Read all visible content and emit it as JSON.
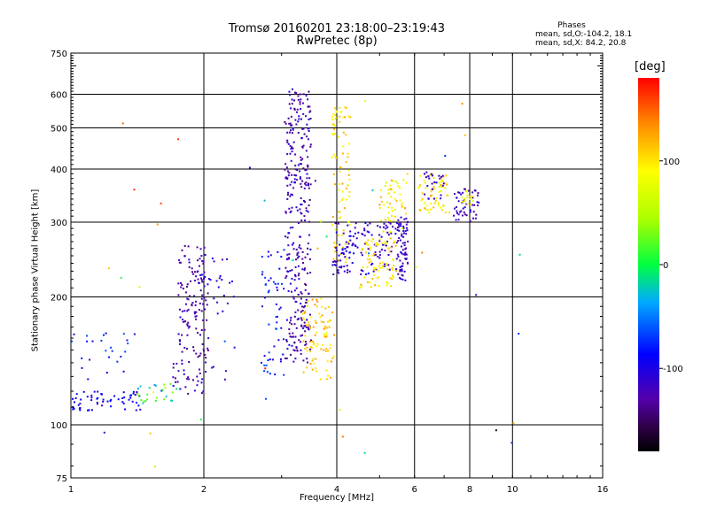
{
  "chart_data": {
    "type": "scatter",
    "title": "Tromsø 20160201 23:18:00–23:19:43",
    "subtitle": "RwPretec (8p)",
    "xlabel": "Frequency [MHz]",
    "ylabel": "Stationary phase Virtual Height [km]",
    "x_scale": "log",
    "y_scale": "log",
    "xlim": [
      1,
      16
    ],
    "ylim": [
      75,
      750
    ],
    "x_ticks": [
      1,
      2,
      4,
      6,
      8,
      10,
      16
    ],
    "x_tick_labels": [
      "1",
      "2",
      "4",
      "6",
      "8",
      "10",
      "16"
    ],
    "x_grid": [
      2,
      4,
      6,
      8,
      10
    ],
    "y_ticks": [
      75,
      100,
      200,
      300,
      400,
      500,
      600,
      750
    ],
    "y_tick_labels": [
      "75",
      "100",
      "200",
      "300",
      "400",
      "500",
      "600",
      "750"
    ],
    "y_grid": [
      100,
      200,
      300,
      400,
      500,
      600
    ],
    "grid": true,
    "colorbar": {
      "label": "[deg]",
      "range": [
        -180,
        180
      ],
      "ticks": [
        -100,
        0,
        100
      ],
      "tick_labels": [
        "-100",
        "0",
        "100"
      ]
    },
    "stats": {
      "title": "Phases",
      "o_line": "mean, sd,O:-104.2, 18.1",
      "x_line": "mean, sd,X:  84.2, 20.8"
    },
    "seed": 20160201,
    "clusters": [
      {
        "f": [
          1.0,
          1.45
        ],
        "h": [
          108,
          120
        ],
        "n": 60,
        "phase": [
          -110,
          -80
        ]
      },
      {
        "f": [
          1.0,
          1.4
        ],
        "h": [
          120,
          165
        ],
        "n": 25,
        "phase": [
          -120,
          -60
        ]
      },
      {
        "f": [
          1.4,
          1.75
        ],
        "h": [
          112,
          125
        ],
        "n": 28,
        "phase": [
          -60,
          80
        ]
      },
      {
        "f": [
          1.7,
          2.05
        ],
        "h": [
          118,
          140
        ],
        "n": 30,
        "phase": [
          -140,
          -100
        ]
      },
      {
        "f": [
          1.75,
          2.05
        ],
        "h": [
          140,
          265
        ],
        "n": 130,
        "phase": [
          -145,
          -105
        ]
      },
      {
        "f": [
          2.05,
          2.35
        ],
        "h": [
          125,
          250
        ],
        "n": 25,
        "phase": [
          -130,
          -90
        ]
      },
      {
        "f": [
          2.7,
          3.05
        ],
        "h": [
          130,
          260
        ],
        "n": 55,
        "phase": [
          -115,
          -60
        ]
      },
      {
        "f": [
          3.05,
          3.5
        ],
        "h": [
          140,
          620
        ],
        "n": 330,
        "phase": [
          -145,
          -100
        ]
      },
      {
        "f": [
          3.35,
          3.95
        ],
        "h": [
          128,
          200
        ],
        "n": 90,
        "phase": [
          90,
          135
        ]
      },
      {
        "f": [
          3.9,
          4.3
        ],
        "h": [
          240,
          560
        ],
        "n": 90,
        "phase": [
          80,
          130
        ]
      },
      {
        "f": [
          3.9,
          5.8
        ],
        "h": [
          225,
          300
        ],
        "n": 160,
        "phase": [
          -130,
          -90
        ]
      },
      {
        "f": [
          4.5,
          5.5
        ],
        "h": [
          210,
          275
        ],
        "n": 80,
        "phase": [
          80,
          125
        ]
      },
      {
        "f": [
          5.0,
          5.8
        ],
        "h": [
          280,
          390
        ],
        "n": 55,
        "phase": [
          60,
          130
        ]
      },
      {
        "f": [
          5.5,
          5.8
        ],
        "h": [
          215,
          310
        ],
        "n": 45,
        "phase": [
          -135,
          -100
        ]
      },
      {
        "f": [
          6.1,
          7.2
        ],
        "h": [
          315,
          390
        ],
        "n": 60,
        "phase": [
          70,
          120
        ]
      },
      {
        "f": [
          6.3,
          7.0
        ],
        "h": [
          340,
          395
        ],
        "n": 25,
        "phase": [
          -140,
          -100
        ]
      },
      {
        "f": [
          7.3,
          8.4
        ],
        "h": [
          300,
          360
        ],
        "n": 50,
        "phase": [
          -140,
          -100
        ]
      },
      {
        "f": [
          7.6,
          8.2
        ],
        "h": [
          330,
          360
        ],
        "n": 15,
        "phase": [
          70,
          110
        ]
      },
      {
        "f": [
          1.0,
          12.5
        ],
        "h": [
          78,
          650
        ],
        "n": 40,
        "phase": [
          -180,
          180
        ]
      }
    ]
  }
}
